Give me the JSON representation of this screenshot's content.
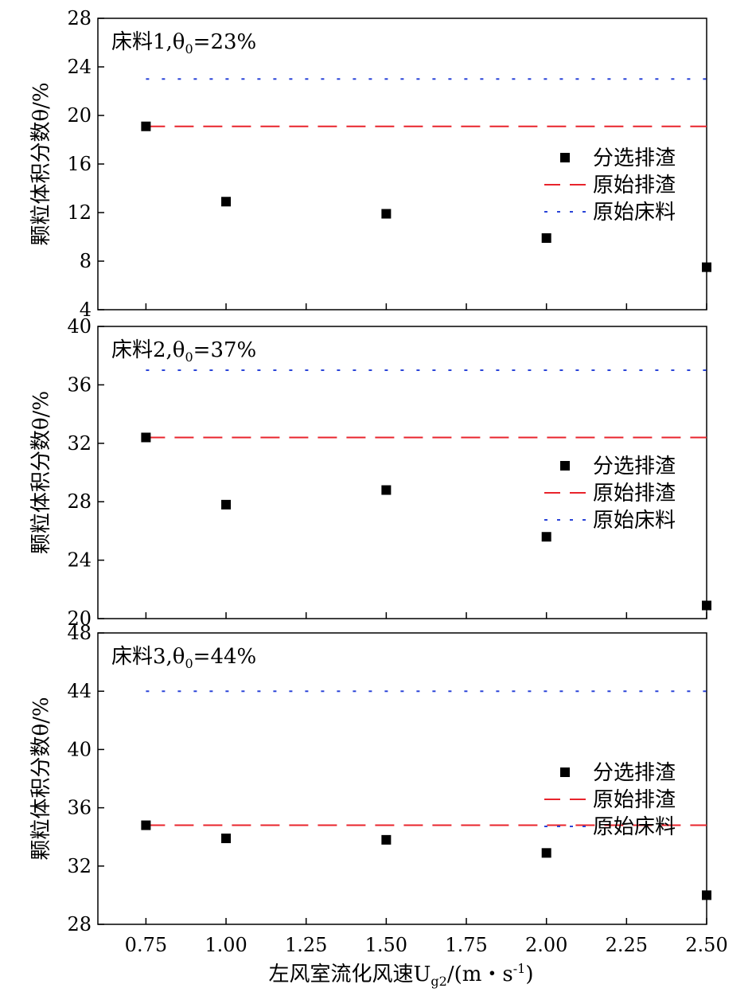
{
  "figure": {
    "xlabel": "左风室流化风速U",
    "xlabel_sub": "g2",
    "xlabel_units": "/(m・s",
    "xlabel_sup": "-1",
    "xlabel_tail": ")"
  },
  "legend_labels": [
    "分选排渣",
    "原始排渣",
    "原始床料"
  ],
  "colors": {
    "separated": "#000000",
    "original_slag": "#e8242c",
    "original_bed": "#2a44d8"
  },
  "chart_data": [
    {
      "type": "scatter",
      "panel_label": "床料1,θ",
      "panel_label_sub": "0",
      "panel_label_tail": "=23%",
      "ylabel": "颗粒体积分数θ/%",
      "xlim": [
        0.6,
        2.5
      ],
      "ylim": [
        4,
        28
      ],
      "xticks": [
        "0.75",
        "1.00",
        "1.25",
        "1.50",
        "1.75",
        "2.00",
        "2.25",
        "2.50"
      ],
      "yticks": [
        "4",
        "8",
        "12",
        "16",
        "20",
        "24",
        "28"
      ],
      "series": [
        {
          "name": "分选排渣",
          "marker": "square",
          "x": [
            0.75,
            1.0,
            1.5,
            2.0,
            2.5
          ],
          "y": [
            19.1,
            12.9,
            11.9,
            9.9,
            7.5
          ]
        },
        {
          "name": "原始排渣",
          "line": "dashed",
          "y": 19.1
        },
        {
          "name": "原始床料",
          "line": "dotted",
          "y": 23
        }
      ]
    },
    {
      "type": "scatter",
      "panel_label": "床料2,θ",
      "panel_label_sub": "0",
      "panel_label_tail": "=37%",
      "ylabel": "颗粒体积分数θ/%",
      "xlim": [
        0.6,
        2.5
      ],
      "ylim": [
        20,
        40
      ],
      "xticks": [
        "0.75",
        "1.00",
        "1.25",
        "1.50",
        "1.75",
        "2.00",
        "2.25",
        "2.50"
      ],
      "yticks": [
        "20",
        "24",
        "28",
        "32",
        "36",
        "40"
      ],
      "series": [
        {
          "name": "分选排渣",
          "marker": "square",
          "x": [
            0.75,
            1.0,
            1.5,
            2.0,
            2.5
          ],
          "y": [
            32.4,
            27.8,
            28.8,
            25.6,
            20.9
          ]
        },
        {
          "name": "原始排渣",
          "line": "dashed",
          "y": 32.4
        },
        {
          "name": "原始床料",
          "line": "dotted",
          "y": 37
        }
      ]
    },
    {
      "type": "scatter",
      "panel_label": "床料3,θ",
      "panel_label_sub": "0",
      "panel_label_tail": "=44%",
      "ylabel": "颗粒体积分数θ/%",
      "xlim": [
        0.6,
        2.5
      ],
      "ylim": [
        28,
        48
      ],
      "xticks": [
        "0.75",
        "1.00",
        "1.25",
        "1.50",
        "1.75",
        "2.00",
        "2.25",
        "2.50"
      ],
      "yticks": [
        "28",
        "32",
        "36",
        "40",
        "44",
        "48"
      ],
      "series": [
        {
          "name": "分选排渣",
          "marker": "square",
          "x": [
            0.75,
            1.0,
            1.5,
            2.0,
            2.5
          ],
          "y": [
            34.8,
            33.9,
            33.8,
            32.9,
            30.0
          ]
        },
        {
          "name": "原始排渣",
          "line": "dashed",
          "y": 34.8
        },
        {
          "name": "原始床料",
          "line": "dotted",
          "y": 44
        }
      ]
    }
  ]
}
